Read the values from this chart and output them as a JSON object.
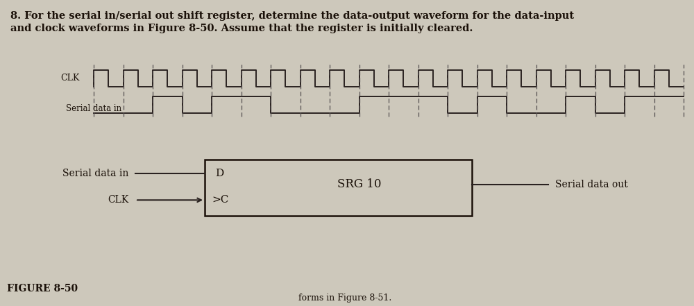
{
  "background_color": "#cdc8bb",
  "title_line1": "8. For the serial in/serial out shift register, determine the data-output waveform for the data-input",
  "title_line2": "and clock waveforms in Figure 8-50. Assume that the register is initially cleared.",
  "title_fontsize": 10.5,
  "block_label": "SRG 10",
  "D_label": "D",
  "C_label": ">C",
  "serial_in_label": "Serial data in",
  "serial_out_label": "Serial data out",
  "clk_label": "CLK",
  "figure_label": "FIGURE 8-50",
  "bottom_text": "forms in Figure 8-51.",
  "clk_color": "#2a2220",
  "data_color": "#2a2220",
  "dashed_color": "#555050",
  "num_clk_cycles": 20,
  "serial_data_bits": [
    0,
    0,
    1,
    0,
    1,
    1,
    0,
    0,
    0,
    1,
    1,
    1,
    0,
    1,
    0,
    0,
    1,
    0,
    1,
    1
  ]
}
